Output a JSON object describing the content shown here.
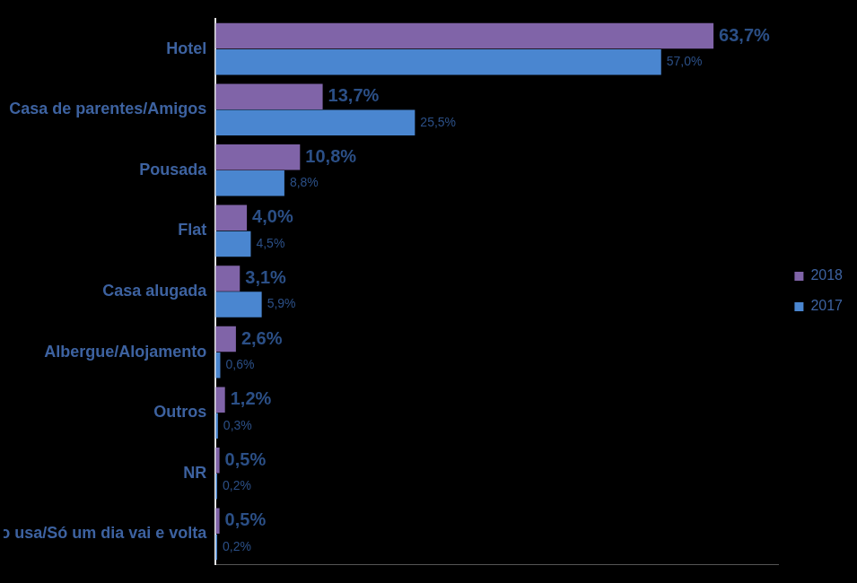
{
  "chart_data": {
    "type": "bar",
    "orientation": "horizontal",
    "categories": [
      "Hotel",
      "Casa de parentes/Amigos",
      "Pousada",
      "Flat",
      "Casa alugada",
      "Albergue/Alojamento",
      "Outros",
      "NR",
      "Não usa/Só um dia vai e volta"
    ],
    "series": [
      {
        "name": "2018",
        "color": "#8064a8",
        "values": [
          63.7,
          13.7,
          10.8,
          4.0,
          3.1,
          2.6,
          1.2,
          0.5,
          0.5
        ],
        "value_labels": [
          "63,7%",
          "13,7%",
          "10,8%",
          "4,0%",
          "3,1%",
          "2,6%",
          "1,2%",
          "0,5%",
          "0,5%"
        ]
      },
      {
        "name": "2017",
        "color": "#4a86d0",
        "values": [
          57.0,
          25.5,
          8.8,
          4.5,
          5.9,
          0.6,
          0.3,
          0.2,
          0.2
        ],
        "value_labels": [
          "57,0%",
          "25,5%",
          "8,8%",
          "4,5%",
          "5,9%",
          "0,6%",
          "0,3%",
          "0,2%",
          "0,2%"
        ]
      }
    ],
    "xlim": [
      0,
      72
    ],
    "grid": false,
    "legend": "right",
    "data_labels": true,
    "tick_labels": "y"
  }
}
